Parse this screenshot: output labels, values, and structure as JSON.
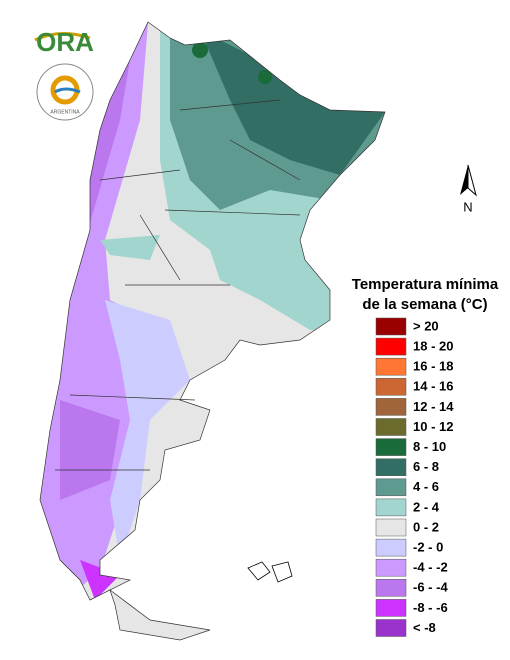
{
  "logo": {
    "name": "ORA",
    "ring_text": "ARGENTINA"
  },
  "north_arrow": "N",
  "legend": {
    "title": [
      "Temperatura mínima",
      "de la semana (°C)"
    ],
    "items": [
      {
        "label": "> 20",
        "color": "#990000"
      },
      {
        "label": "18 - 20",
        "color": "#ff0000"
      },
      {
        "label": "16 - 18",
        "color": "#ff7733"
      },
      {
        "label": "14 - 16",
        "color": "#cc6633"
      },
      {
        "label": "12 - 14",
        "color": "#a0653a"
      },
      {
        "label": "10 - 12",
        "color": "#6b6b2e"
      },
      {
        "label": "8 - 10",
        "color": "#1a6b3a"
      },
      {
        "label": "6 - 8",
        "color": "#336e64"
      },
      {
        "label": "4 - 6",
        "color": "#5e9a90"
      },
      {
        "label": "2 - 4",
        "color": "#a3d5cf"
      },
      {
        "label": "0 - 2",
        "color": "#e6e6e6"
      },
      {
        "label": "-2 - 0",
        "color": "#ccccff"
      },
      {
        "label": "-4 - -2",
        "color": "#cc99ff"
      },
      {
        "label": "-6 - -4",
        "color": "#bb77ee"
      },
      {
        "label": "-8 - -6",
        "color": "#cc33ff"
      },
      {
        "label": "< -8",
        "color": "#9933cc"
      }
    ]
  }
}
